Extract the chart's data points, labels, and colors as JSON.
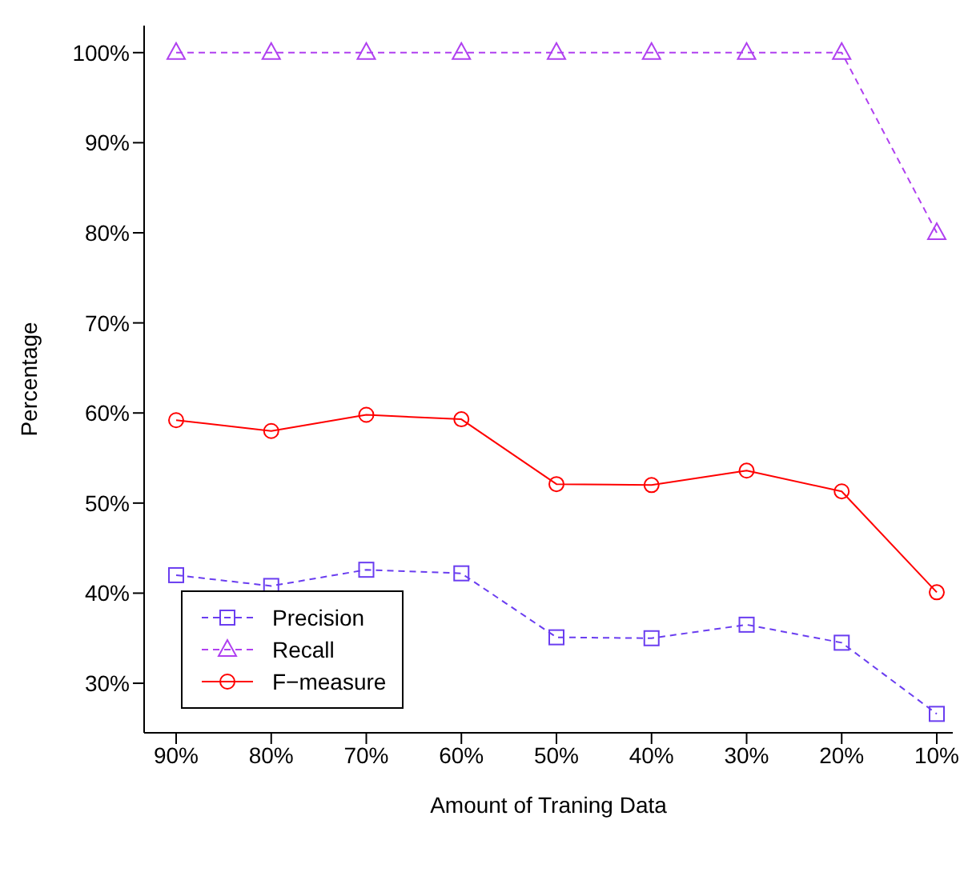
{
  "chart_data": {
    "type": "line",
    "xlabel": "Amount of Traning Data",
    "ylabel": "Percentage",
    "categories": [
      "90%",
      "80%",
      "70%",
      "60%",
      "50%",
      "40%",
      "30%",
      "20%",
      "10%"
    ],
    "ylim": [
      24.5,
      103
    ],
    "yticks": [
      {
        "value": 30,
        "label": "30%"
      },
      {
        "value": 40,
        "label": "40%"
      },
      {
        "value": 50,
        "label": "50%"
      },
      {
        "value": 60,
        "label": "60%"
      },
      {
        "value": 70,
        "label": "70%"
      },
      {
        "value": 80,
        "label": "80%"
      },
      {
        "value": 90,
        "label": "90%"
      },
      {
        "value": 100,
        "label": "100%"
      }
    ],
    "grid": false,
    "legend": "bottom left",
    "series": [
      {
        "name": "Precision",
        "color": "#6a3df0",
        "marker": "square",
        "line_style": "dashed",
        "values": [
          42.0,
          40.8,
          42.6,
          42.2,
          35.1,
          35.0,
          36.5,
          34.5,
          26.6
        ]
      },
      {
        "name": "Recall",
        "color": "#b040f0",
        "marker": "triangle",
        "line_style": "dashed",
        "values": [
          100,
          100,
          100,
          100,
          100,
          100,
          100,
          100,
          80
        ]
      },
      {
        "name": "F−measure",
        "color": "#ff0000",
        "marker": "circle",
        "line_style": "solid",
        "values": [
          59.2,
          58.0,
          59.8,
          59.3,
          52.1,
          52.0,
          53.6,
          51.3,
          40.1
        ]
      }
    ]
  }
}
